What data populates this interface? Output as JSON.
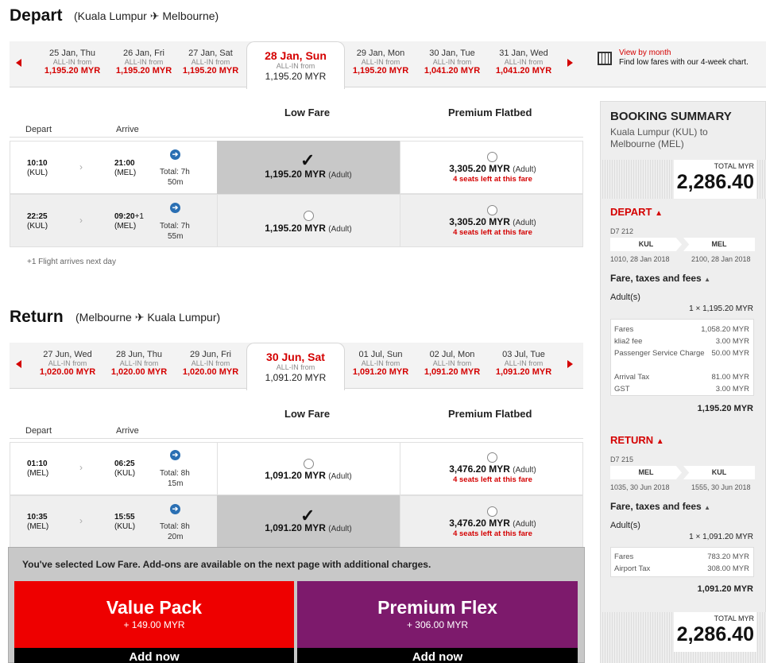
{
  "depart": {
    "title": "Depart",
    "from": "Kuala Lumpur",
    "to": "Melbourne",
    "dates": [
      {
        "day": "25 Jan, Thu",
        "allin": "ALL-IN from",
        "price": "1,195.20 MYR"
      },
      {
        "day": "26 Jan, Fri",
        "allin": "ALL-IN from",
        "price": "1,195.20 MYR"
      },
      {
        "day": "27 Jan, Sat",
        "allin": "ALL-IN from",
        "price": "1,195.20 MYR"
      },
      {
        "day": "28 Jan, Sun",
        "allin": "ALL-IN from",
        "price": "1,195.20 MYR"
      },
      {
        "day": "29 Jan, Mon",
        "allin": "ALL-IN from",
        "price": "1,195.20 MYR"
      },
      {
        "day": "30 Jan, Tue",
        "allin": "ALL-IN from",
        "price": "1,041.20 MYR"
      },
      {
        "day": "31 Jan, Wed",
        "allin": "ALL-IN from",
        "price": "1,041.20 MYR"
      }
    ],
    "view_month": "View by month",
    "view_month_desc": "Find low fares with our 4-week chart.",
    "col_low": "Low Fare",
    "col_premium": "Premium Flatbed",
    "depart_label": "Depart",
    "arrive_label": "Arrive",
    "flights": [
      {
        "dep_time": "10:10",
        "dep_ap": "(KUL)",
        "arr_time": "21:00",
        "arr_ap": "(MEL)",
        "total": "Total: 7h",
        "total2": "50m",
        "low_price": "1,195.20 MYR",
        "premium_price": "3,305.20 MYR",
        "adult": "(Adult)",
        "seats": "4 seats left at this fare"
      },
      {
        "dep_time": "22:25",
        "dep_ap": "(KUL)",
        "arr_time": "09:20",
        "arr_plus": "+1",
        "arr_ap": "(MEL)",
        "total": "Total: 7h",
        "total2": "55m",
        "low_price": "1,195.20 MYR",
        "premium_price": "3,305.20 MYR",
        "adult": "(Adult)",
        "seats": "4 seats left at this fare"
      }
    ],
    "note": "+1 Flight arrives next day"
  },
  "return": {
    "title": "Return",
    "from": "Melbourne",
    "to": "Kuala Lumpur",
    "dates": [
      {
        "day": "27 Jun, Wed",
        "allin": "ALL-IN from",
        "price": "1,020.00 MYR"
      },
      {
        "day": "28 Jun, Thu",
        "allin": "ALL-IN from",
        "price": "1,020.00 MYR"
      },
      {
        "day": "29 Jun, Fri",
        "allin": "ALL-IN from",
        "price": "1,020.00 MYR"
      },
      {
        "day": "30 Jun, Sat",
        "allin": "ALL-IN from",
        "price": "1,091.20 MYR"
      },
      {
        "day": "01 Jul, Sun",
        "allin": "ALL-IN from",
        "price": "1,091.20 MYR"
      },
      {
        "day": "02 Jul, Mon",
        "allin": "ALL-IN from",
        "price": "1,091.20 MYR"
      },
      {
        "day": "03 Jul, Tue",
        "allin": "ALL-IN from",
        "price": "1,091.20 MYR"
      }
    ],
    "col_low": "Low Fare",
    "col_premium": "Premium Flatbed",
    "depart_label": "Depart",
    "arrive_label": "Arrive",
    "flights": [
      {
        "dep_time": "01:10",
        "dep_ap": "(MEL)",
        "arr_time": "06:25",
        "arr_ap": "(KUL)",
        "total": "Total: 8h",
        "total2": "15m",
        "low_price": "1,091.20 MYR",
        "premium_price": "3,476.20 MYR",
        "adult": "(Adult)",
        "seats": "4 seats left at this fare"
      },
      {
        "dep_time": "10:35",
        "dep_ap": "(MEL)",
        "arr_time": "15:55",
        "arr_ap": "(KUL)",
        "total": "Total: 8h",
        "total2": "20m",
        "low_price": "1,091.20 MYR",
        "premium_price": "3,476.20 MYR",
        "adult": "(Adult)",
        "seats": "4 seats left at this fare"
      }
    ]
  },
  "addons": {
    "message": "You've selected Low Fare. Add-ons are available on the next page with additional charges.",
    "value_pack": {
      "title": "Value Pack",
      "price": "+ 149.00 MYR",
      "cta": "Add now"
    },
    "premium_flex": {
      "title": "Premium Flex",
      "price": "+ 306.00 MYR",
      "cta": "Add now"
    }
  },
  "summary": {
    "title": "BOOKING SUMMARY",
    "route": "Kuala Lumpur (KUL) to Melbourne (MEL)",
    "total_label": "TOTAL MYR",
    "total": "2,286.40",
    "depart": {
      "label": "DEPART",
      "flight_no": "D7 212",
      "from": "KUL",
      "to": "MEL",
      "dep": "1010, 28 Jan 2018",
      "arr": "2100, 28 Jan 2018",
      "fare_label": "Fare, taxes and fees",
      "adults": "Adult(s)",
      "adult_line": "1 × 1,195.20 MYR",
      "items": [
        {
          "name": "Fares",
          "value": "1,058.20 MYR"
        },
        {
          "name": "klia2 fee",
          "value": "3.00 MYR"
        },
        {
          "name": "Passenger Service Charge",
          "value": "50.00 MYR"
        },
        {
          "name": "Arrival Tax",
          "value": "81.00 MYR"
        },
        {
          "name": "GST",
          "value": "3.00 MYR"
        }
      ],
      "subtotal": "1,195.20 MYR"
    },
    "return": {
      "label": "RETURN",
      "flight_no": "D7 215",
      "from": "MEL",
      "to": "KUL",
      "dep": "1035, 30 Jun 2018",
      "arr": "1555, 30 Jun 2018",
      "fare_label": "Fare, taxes and fees",
      "adults": "Adult(s)",
      "adult_line": "1 × 1,091.20 MYR",
      "items": [
        {
          "name": "Fares",
          "value": "783.20 MYR"
        },
        {
          "name": "Airport Tax",
          "value": "308.00 MYR"
        }
      ],
      "subtotal": "1,091.20 MYR"
    },
    "total_label2": "TOTAL MYR",
    "total2": "2,286.40"
  },
  "colors": {
    "accent": "#d40000",
    "value_pack": "#ee0000",
    "premium_flex": "#7d1a6c",
    "info": "#2a6fb3"
  }
}
